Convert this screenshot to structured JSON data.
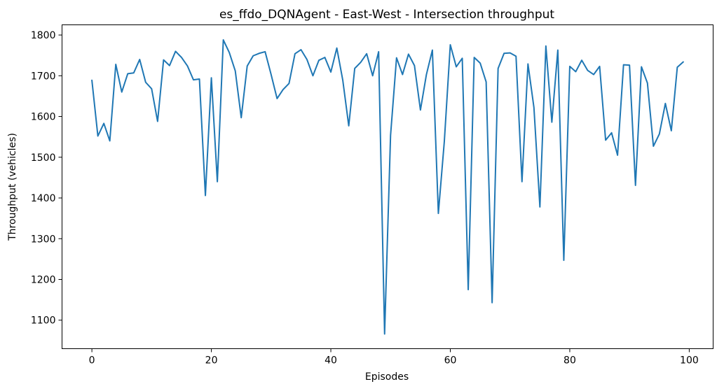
{
  "chart_data": {
    "type": "line",
    "title": "es_ffdo_DQNAgent - East-West - Intersection throughput",
    "xlabel": "Episodes",
    "ylabel": "Throughput (vehicles)",
    "xlim": [
      -5,
      104
    ],
    "ylim": [
      1030,
      1825
    ],
    "xticks": [
      0,
      20,
      40,
      60,
      80,
      100
    ],
    "yticks": [
      1100,
      1200,
      1300,
      1400,
      1500,
      1600,
      1700,
      1800
    ],
    "grid": false,
    "color": "#1f77b4",
    "series": [
      {
        "x": [
          0,
          1,
          2,
          3,
          4,
          5,
          6,
          7,
          8,
          9,
          10,
          11,
          12,
          13,
          14,
          15,
          16,
          17,
          18,
          19,
          20,
          21,
          22,
          23,
          24,
          25,
          26,
          27,
          28,
          29,
          30,
          31,
          32,
          33,
          34,
          35,
          36,
          37,
          38,
          39,
          40,
          41,
          42,
          43,
          44,
          45,
          46,
          47,
          48,
          49,
          50,
          51,
          52,
          53,
          54,
          55,
          56,
          57,
          58,
          59,
          60,
          61,
          62,
          63,
          64,
          65,
          66,
          67,
          68,
          69,
          70,
          71,
          72,
          73,
          74,
          75,
          76,
          77,
          78,
          79,
          80,
          81,
          82,
          83,
          84,
          85,
          86,
          87,
          88,
          89,
          90,
          91,
          92,
          93,
          94,
          95,
          96,
          97,
          98,
          99
        ],
        "y": [
          1689,
          1552,
          1583,
          1540,
          1728,
          1660,
          1705,
          1707,
          1740,
          1684,
          1668,
          1588,
          1739,
          1725,
          1760,
          1745,
          1724,
          1690,
          1692,
          1406,
          1695,
          1440,
          1788,
          1757,
          1712,
          1597,
          1724,
          1749,
          1755,
          1759,
          1703,
          1644,
          1666,
          1681,
          1754,
          1764,
          1740,
          1700,
          1738,
          1745,
          1709,
          1768,
          1689,
          1577,
          1718,
          1733,
          1754,
          1700,
          1759,
          1066,
          1554,
          1744,
          1703,
          1753,
          1725,
          1616,
          1703,
          1763,
          1362,
          1539,
          1776,
          1722,
          1743,
          1175,
          1745,
          1731,
          1685,
          1143,
          1718,
          1755,
          1756,
          1748,
          1440,
          1729,
          1622,
          1378,
          1773,
          1586,
          1763,
          1247,
          1723,
          1710,
          1738,
          1713,
          1703,
          1723,
          1542,
          1560,
          1505,
          1727,
          1726,
          1431,
          1722,
          1682,
          1527,
          1557,
          1632,
          1565,
          1721,
          1734
        ]
      }
    ]
  }
}
